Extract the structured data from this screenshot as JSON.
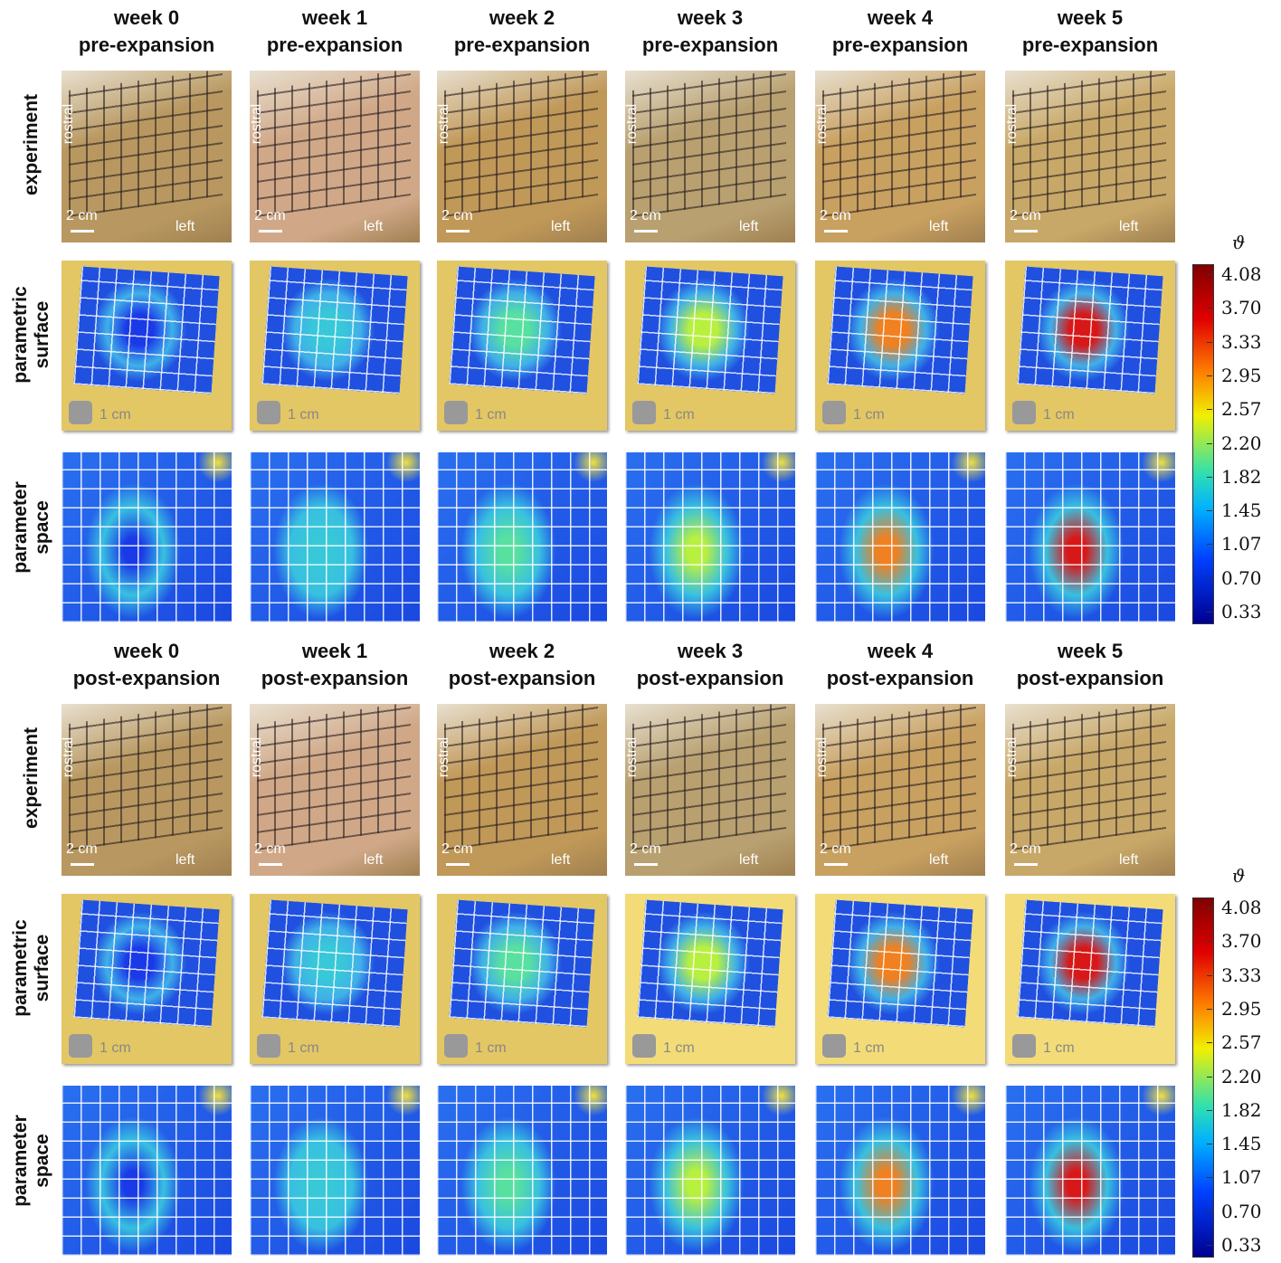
{
  "sections": [
    {
      "phase": "pre-expansion",
      "weeks": [
        "week 0",
        "week 1",
        "week 2",
        "week 3",
        "week 4",
        "week 5"
      ]
    },
    {
      "phase": "post-expansion",
      "weeks": [
        "week 0",
        "week 1",
        "week 2",
        "week 3",
        "week 4",
        "week 5"
      ]
    }
  ],
  "row_labels": [
    [
      "experiment"
    ],
    [
      "parametric",
      "surface"
    ],
    [
      "parameter",
      "space"
    ]
  ],
  "panel_labels": {
    "orientation_top": "rostral",
    "orientation_side": "left",
    "scale_photo": "2 cm",
    "scale_surface": "1 cm"
  },
  "colorbar": {
    "symbol": "ϑ",
    "ticks": [
      "4.08",
      "3.70",
      "3.33",
      "2.95",
      "2.57",
      "2.20",
      "1.82",
      "1.45",
      "1.07",
      "0.70",
      "0.33"
    ]
  }
}
